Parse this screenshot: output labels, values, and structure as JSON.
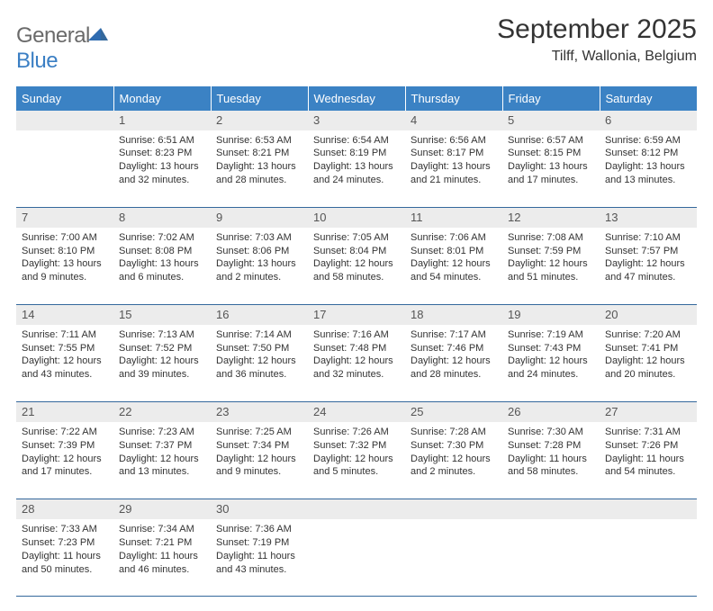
{
  "logo": {
    "text1": "General",
    "text2": "Blue"
  },
  "title": {
    "month": "September 2025",
    "location": "Tilff, Wallonia, Belgium"
  },
  "colors": {
    "header_bg": "#3b82c4",
    "header_text": "#ffffff",
    "daynum_bg": "#ececec",
    "daynum_text": "#555555",
    "cell_border": "#34689c",
    "body_text": "#333333",
    "logo_gray": "#6a6a6a",
    "logo_blue": "#3b7fc4"
  },
  "weekdays": [
    "Sunday",
    "Monday",
    "Tuesday",
    "Wednesday",
    "Thursday",
    "Friday",
    "Saturday"
  ],
  "grid": {
    "start_weekday": 1,
    "days_in_month": 30
  },
  "days": {
    "1": {
      "sunrise": "6:51 AM",
      "sunset": "8:23 PM",
      "daylight": "13 hours and 32 minutes."
    },
    "2": {
      "sunrise": "6:53 AM",
      "sunset": "8:21 PM",
      "daylight": "13 hours and 28 minutes."
    },
    "3": {
      "sunrise": "6:54 AM",
      "sunset": "8:19 PM",
      "daylight": "13 hours and 24 minutes."
    },
    "4": {
      "sunrise": "6:56 AM",
      "sunset": "8:17 PM",
      "daylight": "13 hours and 21 minutes."
    },
    "5": {
      "sunrise": "6:57 AM",
      "sunset": "8:15 PM",
      "daylight": "13 hours and 17 minutes."
    },
    "6": {
      "sunrise": "6:59 AM",
      "sunset": "8:12 PM",
      "daylight": "13 hours and 13 minutes."
    },
    "7": {
      "sunrise": "7:00 AM",
      "sunset": "8:10 PM",
      "daylight": "13 hours and 9 minutes."
    },
    "8": {
      "sunrise": "7:02 AM",
      "sunset": "8:08 PM",
      "daylight": "13 hours and 6 minutes."
    },
    "9": {
      "sunrise": "7:03 AM",
      "sunset": "8:06 PM",
      "daylight": "13 hours and 2 minutes."
    },
    "10": {
      "sunrise": "7:05 AM",
      "sunset": "8:04 PM",
      "daylight": "12 hours and 58 minutes."
    },
    "11": {
      "sunrise": "7:06 AM",
      "sunset": "8:01 PM",
      "daylight": "12 hours and 54 minutes."
    },
    "12": {
      "sunrise": "7:08 AM",
      "sunset": "7:59 PM",
      "daylight": "12 hours and 51 minutes."
    },
    "13": {
      "sunrise": "7:10 AM",
      "sunset": "7:57 PM",
      "daylight": "12 hours and 47 minutes."
    },
    "14": {
      "sunrise": "7:11 AM",
      "sunset": "7:55 PM",
      "daylight": "12 hours and 43 minutes."
    },
    "15": {
      "sunrise": "7:13 AM",
      "sunset": "7:52 PM",
      "daylight": "12 hours and 39 minutes."
    },
    "16": {
      "sunrise": "7:14 AM",
      "sunset": "7:50 PM",
      "daylight": "12 hours and 36 minutes."
    },
    "17": {
      "sunrise": "7:16 AM",
      "sunset": "7:48 PM",
      "daylight": "12 hours and 32 minutes."
    },
    "18": {
      "sunrise": "7:17 AM",
      "sunset": "7:46 PM",
      "daylight": "12 hours and 28 minutes."
    },
    "19": {
      "sunrise": "7:19 AM",
      "sunset": "7:43 PM",
      "daylight": "12 hours and 24 minutes."
    },
    "20": {
      "sunrise": "7:20 AM",
      "sunset": "7:41 PM",
      "daylight": "12 hours and 20 minutes."
    },
    "21": {
      "sunrise": "7:22 AM",
      "sunset": "7:39 PM",
      "daylight": "12 hours and 17 minutes."
    },
    "22": {
      "sunrise": "7:23 AM",
      "sunset": "7:37 PM",
      "daylight": "12 hours and 13 minutes."
    },
    "23": {
      "sunrise": "7:25 AM",
      "sunset": "7:34 PM",
      "daylight": "12 hours and 9 minutes."
    },
    "24": {
      "sunrise": "7:26 AM",
      "sunset": "7:32 PM",
      "daylight": "12 hours and 5 minutes."
    },
    "25": {
      "sunrise": "7:28 AM",
      "sunset": "7:30 PM",
      "daylight": "12 hours and 2 minutes."
    },
    "26": {
      "sunrise": "7:30 AM",
      "sunset": "7:28 PM",
      "daylight": "11 hours and 58 minutes."
    },
    "27": {
      "sunrise": "7:31 AM",
      "sunset": "7:26 PM",
      "daylight": "11 hours and 54 minutes."
    },
    "28": {
      "sunrise": "7:33 AM",
      "sunset": "7:23 PM",
      "daylight": "11 hours and 50 minutes."
    },
    "29": {
      "sunrise": "7:34 AM",
      "sunset": "7:21 PM",
      "daylight": "11 hours and 46 minutes."
    },
    "30": {
      "sunrise": "7:36 AM",
      "sunset": "7:19 PM",
      "daylight": "11 hours and 43 minutes."
    }
  },
  "labels": {
    "sunrise": "Sunrise:",
    "sunset": "Sunset:",
    "daylight": "Daylight:"
  }
}
